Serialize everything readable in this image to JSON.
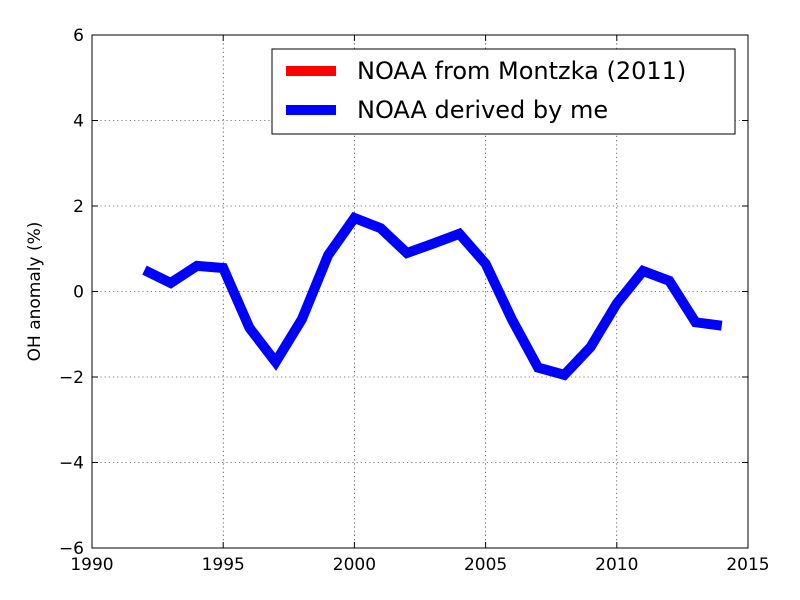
{
  "chart_data": {
    "type": "line",
    "title": "",
    "xlabel": "",
    "ylabel": "OH anomaly (%)",
    "xlim": [
      1990,
      2015
    ],
    "ylim": [
      -6,
      6
    ],
    "xticks": [
      1990,
      1995,
      2000,
      2005,
      2010,
      2015
    ],
    "yticks": [
      -6,
      -4,
      -2,
      0,
      2,
      4,
      6
    ],
    "ytick_labels": [
      "−6",
      "−4",
      "−2",
      "0",
      "2",
      "4",
      "6"
    ],
    "grid": true,
    "legend_position": "top-right",
    "series": [
      {
        "name": "NOAA from Montzka (2011)",
        "color": "#ff0000",
        "x": [],
        "y": []
      },
      {
        "name": "NOAA derived by me",
        "color": "#0000ff",
        "x": [
          1992,
          1993,
          1994,
          1995,
          1996,
          1997,
          1998,
          1999,
          2000,
          2001,
          2002,
          2003,
          2004,
          2005,
          2006,
          2007,
          2008,
          2009,
          2010,
          2011,
          2012,
          2013,
          2014
        ],
        "y": [
          0.5,
          0.2,
          0.6,
          0.55,
          -0.85,
          -1.65,
          -0.65,
          0.85,
          1.72,
          1.48,
          0.9,
          1.12,
          1.35,
          0.65,
          -0.65,
          -1.78,
          -1.95,
          -1.3,
          -0.28,
          0.48,
          0.25,
          -0.72,
          -0.8
        ]
      }
    ]
  }
}
